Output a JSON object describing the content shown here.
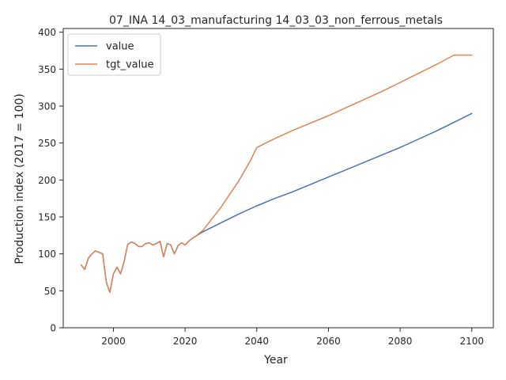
{
  "chart_data": {
    "type": "line",
    "title": "07_INA 14_03_manufacturing 14_03_03_non_ferrous_metals",
    "xlabel": "Year",
    "ylabel": "Production index (2017 = 100)",
    "xlim": [
      1986,
      2106
    ],
    "ylim": [
      0,
      405
    ],
    "xticks": [
      2000,
      2020,
      2040,
      2060,
      2080,
      2100
    ],
    "yticks": [
      0,
      50,
      100,
      150,
      200,
      250,
      300,
      350,
      400
    ],
    "legend_position": "top-left",
    "grid": false,
    "series": [
      {
        "name": "value",
        "color": "#4c72b0",
        "points": [
          [
            1991,
            85
          ],
          [
            1992,
            79
          ],
          [
            1993,
            94
          ],
          [
            1994,
            100
          ],
          [
            1995,
            104
          ],
          [
            1996,
            102
          ],
          [
            1997,
            100
          ],
          [
            1998,
            62
          ],
          [
            1999,
            48
          ],
          [
            2000,
            73
          ],
          [
            2001,
            82
          ],
          [
            2002,
            73
          ],
          [
            2003,
            90
          ],
          [
            2004,
            113
          ],
          [
            2005,
            116
          ],
          [
            2006,
            114
          ],
          [
            2007,
            110
          ],
          [
            2008,
            110
          ],
          [
            2009,
            114
          ],
          [
            2010,
            115
          ],
          [
            2011,
            112
          ],
          [
            2012,
            114
          ],
          [
            2013,
            117
          ],
          [
            2014,
            96
          ],
          [
            2015,
            114
          ],
          [
            2016,
            112
          ],
          [
            2017,
            100
          ],
          [
            2018,
            111
          ],
          [
            2019,
            115
          ],
          [
            2020,
            112
          ],
          [
            2021,
            117
          ],
          [
            2022,
            121
          ],
          [
            2023,
            124
          ],
          [
            2025,
            130
          ],
          [
            2030,
            142
          ],
          [
            2035,
            154
          ],
          [
            2040,
            165
          ],
          [
            2045,
            175
          ],
          [
            2050,
            184
          ],
          [
            2055,
            194
          ],
          [
            2060,
            204
          ],
          [
            2065,
            214
          ],
          [
            2070,
            224
          ],
          [
            2075,
            234
          ],
          [
            2080,
            244
          ],
          [
            2085,
            255
          ],
          [
            2090,
            266
          ],
          [
            2095,
            278
          ],
          [
            2100,
            290
          ]
        ]
      },
      {
        "name": "tgt_value",
        "color": "#dd8452",
        "points": [
          [
            1991,
            85
          ],
          [
            1992,
            79
          ],
          [
            1993,
            94
          ],
          [
            1994,
            100
          ],
          [
            1995,
            104
          ],
          [
            1996,
            102
          ],
          [
            1997,
            100
          ],
          [
            1998,
            62
          ],
          [
            1999,
            48
          ],
          [
            2000,
            73
          ],
          [
            2001,
            82
          ],
          [
            2002,
            73
          ],
          [
            2003,
            90
          ],
          [
            2004,
            113
          ],
          [
            2005,
            116
          ],
          [
            2006,
            114
          ],
          [
            2007,
            110
          ],
          [
            2008,
            110
          ],
          [
            2009,
            114
          ],
          [
            2010,
            115
          ],
          [
            2011,
            112
          ],
          [
            2012,
            114
          ],
          [
            2013,
            117
          ],
          [
            2014,
            96
          ],
          [
            2015,
            114
          ],
          [
            2016,
            112
          ],
          [
            2017,
            100
          ],
          [
            2018,
            111
          ],
          [
            2019,
            115
          ],
          [
            2020,
            112
          ],
          [
            2021,
            117
          ],
          [
            2022,
            121
          ],
          [
            2023,
            124
          ],
          [
            2025,
            132
          ],
          [
            2030,
            163
          ],
          [
            2035,
            199
          ],
          [
            2038,
            224
          ],
          [
            2040,
            244
          ],
          [
            2045,
            256
          ],
          [
            2050,
            267
          ],
          [
            2055,
            277
          ],
          [
            2060,
            287
          ],
          [
            2065,
            298
          ],
          [
            2070,
            309
          ],
          [
            2075,
            320
          ],
          [
            2080,
            332
          ],
          [
            2085,
            344
          ],
          [
            2090,
            356
          ],
          [
            2095,
            369
          ],
          [
            2100,
            369
          ]
        ]
      }
    ]
  }
}
